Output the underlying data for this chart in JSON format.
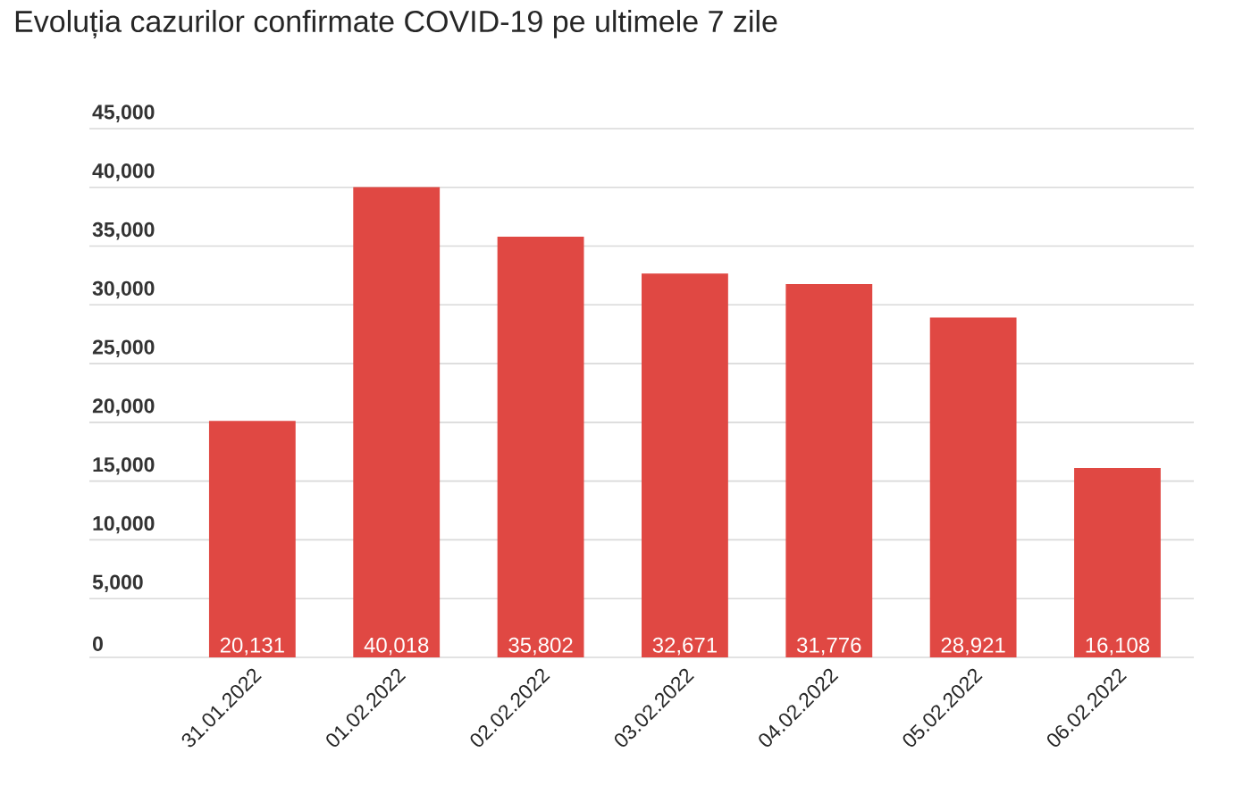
{
  "chart_data": {
    "type": "bar",
    "title": "Evoluția cazurilor confirmate COVID-19 pe ultimele 7 zile",
    "categories": [
      "31.01.2022",
      "01.02.2022",
      "02.02.2022",
      "03.02.2022",
      "04.02.2022",
      "05.02.2022",
      "06.02.2022"
    ],
    "values": [
      20131,
      40018,
      35802,
      32671,
      31776,
      28921,
      16108
    ],
    "value_labels": [
      "20,131",
      "40,018",
      "35,802",
      "32,671",
      "31,776",
      "28,921",
      "16,108"
    ],
    "color": "#e04843",
    "ylim": [
      0,
      45000
    ],
    "yticks": [
      0,
      {
        "value": 5000,
        "label": "5,000"
      },
      {
        "value": 10000,
        "label": "10,000"
      },
      {
        "value": 15000,
        "label": "15,000"
      },
      {
        "value": 20000,
        "label": "20,000"
      },
      {
        "value": 25000,
        "label": "25,000"
      },
      {
        "value": 30000,
        "label": "30,000"
      },
      {
        "value": 35000,
        "label": "35,000"
      },
      {
        "value": 40000,
        "label": "40,000"
      },
      {
        "value": 45000,
        "label": "45,000"
      }
    ],
    "grid": "y"
  }
}
